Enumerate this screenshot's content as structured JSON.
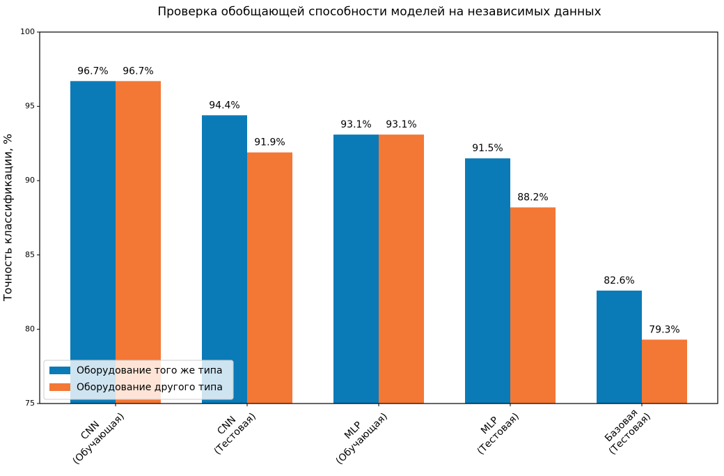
{
  "chart_data": {
    "type": "bar",
    "title": "Проверка обобщающей способности моделей на независимых данных",
    "ylabel": "Точность классификации, %",
    "categories": [
      [
        "CNN",
        "(Обучающая)"
      ],
      [
        "CNN",
        "(Тестовая)"
      ],
      [
        "MLP",
        "(Обучающая)"
      ],
      [
        "MLP",
        "(Тестовая)"
      ],
      [
        "Базовая",
        "(Тестовая)"
      ]
    ],
    "series": [
      {
        "name": "Оборудование того же типа",
        "color": "#0a7bb7",
        "values": [
          96.7,
          94.4,
          93.1,
          91.5,
          82.6
        ],
        "value_labels": [
          "96.7%",
          "94.4%",
          "93.1%",
          "91.5%",
          "82.6%"
        ]
      },
      {
        "name": "Оборудование другого типа",
        "color": "#f37735",
        "values": [
          96.7,
          91.9,
          93.1,
          88.2,
          79.3
        ],
        "value_labels": [
          "96.7%",
          "91.9%",
          "93.1%",
          "88.2%",
          "79.3%"
        ]
      }
    ],
    "ylim": [
      75,
      100
    ],
    "yticks": [
      75,
      80,
      85,
      90,
      95,
      100
    ],
    "grid": false,
    "legend": "lower left"
  }
}
